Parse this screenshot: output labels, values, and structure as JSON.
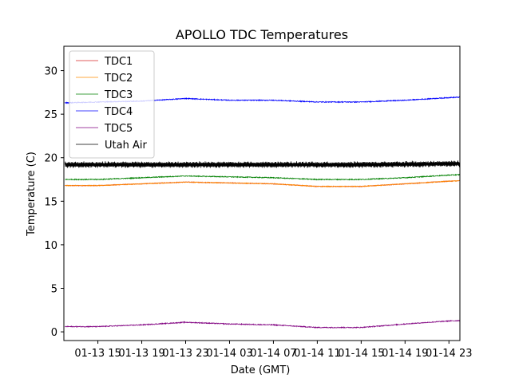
{
  "chart_data": {
    "type": "line",
    "title": "APOLLO TDC Temperatures",
    "xlabel": "Date (GMT)",
    "ylabel": "Temperature (C)",
    "x_unit": "hours since 01-13 00:00 GMT",
    "xlim": [
      11.9,
      48.0
    ],
    "ylim": [
      -1.0,
      32.8
    ],
    "grid": false,
    "legend_position": "top-left",
    "x_ticks": [
      {
        "x": 15,
        "label": "01-13 15"
      },
      {
        "x": 19,
        "label": "01-13 19"
      },
      {
        "x": 23,
        "label": "01-13 23"
      },
      {
        "x": 27,
        "label": "01-14 03"
      },
      {
        "x": 31,
        "label": "01-14 07"
      },
      {
        "x": 35,
        "label": "01-14 11"
      },
      {
        "x": 39,
        "label": "01-14 15"
      },
      {
        "x": 43,
        "label": "01-14 19"
      },
      {
        "x": 47,
        "label": "01-14 23"
      }
    ],
    "y_ticks": [
      {
        "y": 0,
        "label": "0"
      },
      {
        "y": 5,
        "label": "5"
      },
      {
        "y": 10,
        "label": "10"
      },
      {
        "y": 15,
        "label": "15"
      },
      {
        "y": 20,
        "label": "20"
      },
      {
        "y": 25,
        "label": "25"
      },
      {
        "y": 30,
        "label": "30"
      }
    ],
    "series": [
      {
        "name": "TDC1",
        "color": "#d62728",
        "noise": 0.04,
        "x": [
          12,
          15,
          19,
          23,
          27,
          31,
          35,
          39,
          43,
          47,
          48
        ],
        "y": [
          16.8,
          16.8,
          17.0,
          17.2,
          17.1,
          17.0,
          16.7,
          16.7,
          17.0,
          17.3,
          17.35
        ]
      },
      {
        "name": "TDC2",
        "color": "#ff8c00",
        "noise": 0.04,
        "x": [
          12,
          15,
          19,
          23,
          27,
          31,
          35,
          39,
          43,
          47,
          48
        ],
        "y": [
          16.8,
          16.8,
          17.0,
          17.2,
          17.1,
          17.0,
          16.7,
          16.7,
          17.0,
          17.3,
          17.35
        ]
      },
      {
        "name": "TDC3",
        "color": "#008000",
        "noise": 0.05,
        "x": [
          12,
          15,
          19,
          23,
          27,
          31,
          35,
          39,
          43,
          47,
          48
        ],
        "y": [
          17.5,
          17.5,
          17.7,
          17.9,
          17.8,
          17.7,
          17.5,
          17.5,
          17.7,
          18.0,
          18.05
        ]
      },
      {
        "name": "TDC4",
        "color": "#0000ff",
        "noise": 0.05,
        "x": [
          12,
          15,
          19,
          23,
          27,
          31,
          35,
          39,
          43,
          47,
          48
        ],
        "y": [
          26.3,
          26.4,
          26.5,
          26.8,
          26.6,
          26.6,
          26.4,
          26.4,
          26.6,
          26.9,
          26.95
        ]
      },
      {
        "name": "TDC5",
        "color": "#800080",
        "noise": 0.05,
        "x": [
          12,
          15,
          19,
          23,
          27,
          31,
          35,
          39,
          43,
          47,
          48
        ],
        "y": [
          0.6,
          0.6,
          0.8,
          1.1,
          0.9,
          0.8,
          0.5,
          0.5,
          0.9,
          1.25,
          1.3
        ]
      },
      {
        "name": "Utah Air",
        "color": "#000000",
        "noise": 0.0,
        "oscillation": 0.35,
        "x": [
          12,
          15,
          19,
          23,
          27,
          31,
          35,
          39,
          43,
          47,
          48
        ],
        "y": [
          19.2,
          19.2,
          19.2,
          19.2,
          19.2,
          19.2,
          19.2,
          19.2,
          19.25,
          19.3,
          19.3
        ]
      }
    ]
  }
}
